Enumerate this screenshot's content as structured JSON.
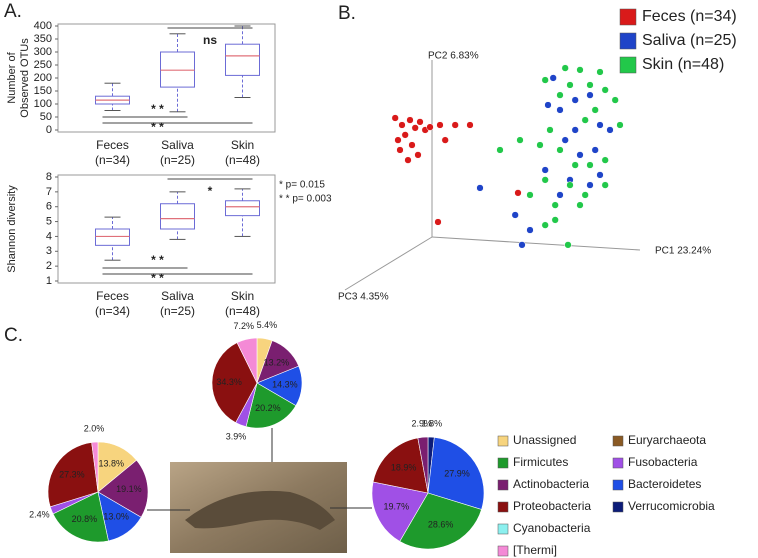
{
  "chart_data": [
    {
      "type": "box",
      "panel": "A.",
      "ylabel": [
        "Number of",
        "Observed OTUs"
      ],
      "categories": [
        "Feces",
        "Saliva",
        "Skin"
      ],
      "n_labels": [
        "(n=34)",
        "(n=25)",
        "(n=48)"
      ],
      "ylim": [
        0,
        400
      ],
      "yticks": [
        0,
        50,
        100,
        150,
        200,
        250,
        300,
        350,
        400
      ],
      "color": "#6b6bd6",
      "median_color": "#e0707a",
      "boxes": [
        {
          "low": 75,
          "q1": 100,
          "median": 115,
          "q3": 130,
          "high": 180
        },
        {
          "low": 70,
          "q1": 165,
          "median": 230,
          "q3": 300,
          "high": 370
        },
        {
          "low": 125,
          "q1": 210,
          "median": 285,
          "q3": 330,
          "high": 400
        }
      ],
      "annotations": [
        {
          "label": "ns",
          "between": [
            "Saliva",
            "Skin"
          ]
        },
        {
          "label": "* *",
          "between": [
            "Feces",
            "Saliva"
          ]
        },
        {
          "label": "* *",
          "between": [
            "Feces",
            "Skin"
          ]
        }
      ]
    },
    {
      "type": "box",
      "ylabel": [
        "Shannon diversity"
      ],
      "categories": [
        "Feces",
        "Saliva",
        "Skin"
      ],
      "n_labels": [
        "(n=34)",
        "(n=25)",
        "(n=48)"
      ],
      "ylim": [
        1,
        8
      ],
      "yticks": [
        1,
        2,
        3,
        4,
        5,
        6,
        7,
        8
      ],
      "color": "#6b6bd6",
      "median_color": "#e0707a",
      "boxes": [
        {
          "low": 2.4,
          "q1": 3.4,
          "median": 4.0,
          "q3": 4.5,
          "high": 5.3
        },
        {
          "low": 3.8,
          "q1": 4.5,
          "median": 5.2,
          "q3": 6.2,
          "high": 7.0
        },
        {
          "low": 4.0,
          "q1": 5.4,
          "median": 6.0,
          "q3": 6.4,
          "high": 7.2
        }
      ],
      "annotations": [
        {
          "label": "*",
          "between": [
            "Saliva",
            "Skin"
          ]
        },
        {
          "label": "* *",
          "between": [
            "Feces",
            "Saliva"
          ]
        },
        {
          "label": "* *",
          "between": [
            "Feces",
            "Skin"
          ]
        }
      ],
      "notes": [
        "* p= 0.015",
        "* * p= 0.003"
      ]
    },
    {
      "type": "scatter",
      "panel": "B.",
      "axis_labels": [
        "PC1 23.24%",
        "PC2 6.83%",
        "PC3 4.35%"
      ],
      "xlim": [
        0,
        100
      ],
      "ylim": [
        0,
        100
      ],
      "series": [
        {
          "name": "Feces (n=34)",
          "color": "#d91a1a",
          "x": [
            13.8,
            15.5,
            17.5,
            18.8,
            16.3,
            14.5,
            20,
            21.3,
            18,
            15,
            19.5,
            17,
            22.5,
            25,
            28.8,
            32.5,
            26.3,
            24.5,
            44.5
          ],
          "values": [
            70,
            67.3,
            69.2,
            66.2,
            63.5,
            61.5,
            68.5,
            65.4,
            59.6,
            57.7,
            55.8,
            53.8,
            66.5,
            67.3,
            67.3,
            67.3,
            61.5,
            30,
            41.2
          ]
        },
        {
          "name": "Saliva (n=25)",
          "color": "#1f44c8",
          "x": [
            53.3,
            58.8,
            62.5,
            52,
            55,
            58.8,
            65,
            67.5,
            56.3,
            60,
            63.8,
            51.3,
            57.5,
            65,
            55,
            43.8,
            47.5,
            62.5,
            35,
            45.5
          ],
          "values": [
            85.4,
            76.9,
            78.8,
            75,
            73.1,
            65.4,
            67.3,
            65.4,
            61.5,
            55.8,
            57.7,
            50,
            46.2,
            48.1,
            40.4,
            32.7,
            26.9,
            44.2,
            43.1,
            21.2
          ]
        },
        {
          "name": "Skin (n=48)",
          "color": "#22c84a",
          "x": [
            56.3,
            60,
            65,
            51.3,
            57.5,
            62.5,
            66.3,
            55,
            63.8,
            68.8,
            70,
            61.3,
            52.5,
            50,
            40,
            45,
            55,
            58.8,
            62.5,
            66.3,
            51.3,
            57.5,
            53.8,
            60,
            53.8,
            51.3,
            57,
            47.5,
            66.3,
            61.3
          ],
          "values": [
            89.2,
            88.5,
            87.7,
            84.6,
            82.7,
            82.7,
            80.8,
            78.8,
            73.1,
            76.9,
            67.3,
            69.2,
            65.4,
            59.6,
            57.7,
            61.5,
            57.7,
            51.9,
            51.9,
            53.8,
            46.2,
            44.2,
            36.5,
            36.5,
            30.8,
            28.8,
            21.2,
            40.4,
            44.2,
            40.4
          ]
        }
      ]
    },
    {
      "type": "pie",
      "panel": "C.",
      "legend": {
        "categories": [
          "Unassigned",
          "Firmicutes",
          "Actinobacteria",
          "Proteobacteria",
          "Cyanobacteria",
          "[Thermi]",
          "Euryarchaeota",
          "Fusobacteria",
          "Bacteroidetes",
          "Verrucomicrobia"
        ],
        "colors": [
          "#f7d47e",
          "#1e9a2c",
          "#7a1f70",
          "#8a1010",
          "#8cf0ef",
          "#f48ad6",
          "#8a5a24",
          "#a050e6",
          "#1f4fe6",
          "#0c1c78"
        ]
      },
      "pies": [
        {
          "categories": [
            "Unassigned",
            "Actinobacteria",
            "Bacteroidetes",
            "Firmicutes",
            "Fusobacteria",
            "Proteobacteria",
            "[Thermi]"
          ],
          "values": [
            13.8,
            19.1,
            13.0,
            20.8,
            2.4,
            27.3,
            2.0
          ],
          "value_labels": [
            "13.8%",
            "19.1%",
            "13.0%",
            "20.8%",
            "2.4%",
            "27.3%",
            "2.0%"
          ]
        },
        {
          "categories": [
            "Unassigned",
            "Actinobacteria",
            "Bacteroidetes",
            "Firmicutes",
            "Fusobacteria",
            "Proteobacteria",
            "[Thermi]"
          ],
          "values": [
            5.4,
            13.2,
            14.3,
            20.2,
            3.9,
            34.3,
            7.2
          ],
          "value_labels": [
            "5.4%",
            "13.2%",
            "14.3%",
            "20.2%",
            "3.9%",
            "34.3%",
            "7.2%"
          ]
        },
        {
          "categories": [
            "Verrucomicrobia",
            "Bacteroidetes",
            "Firmicutes",
            "Fusobacteria",
            "Proteobacteria",
            "Actinobacteria"
          ],
          "values": [
            1.8,
            27.9,
            28.6,
            19.7,
            18.9,
            2.9
          ],
          "value_labels": [
            "1.8%",
            "27.9%",
            "28.6%",
            "19.7%",
            "18.9%",
            "2.9%"
          ]
        }
      ]
    }
  ]
}
